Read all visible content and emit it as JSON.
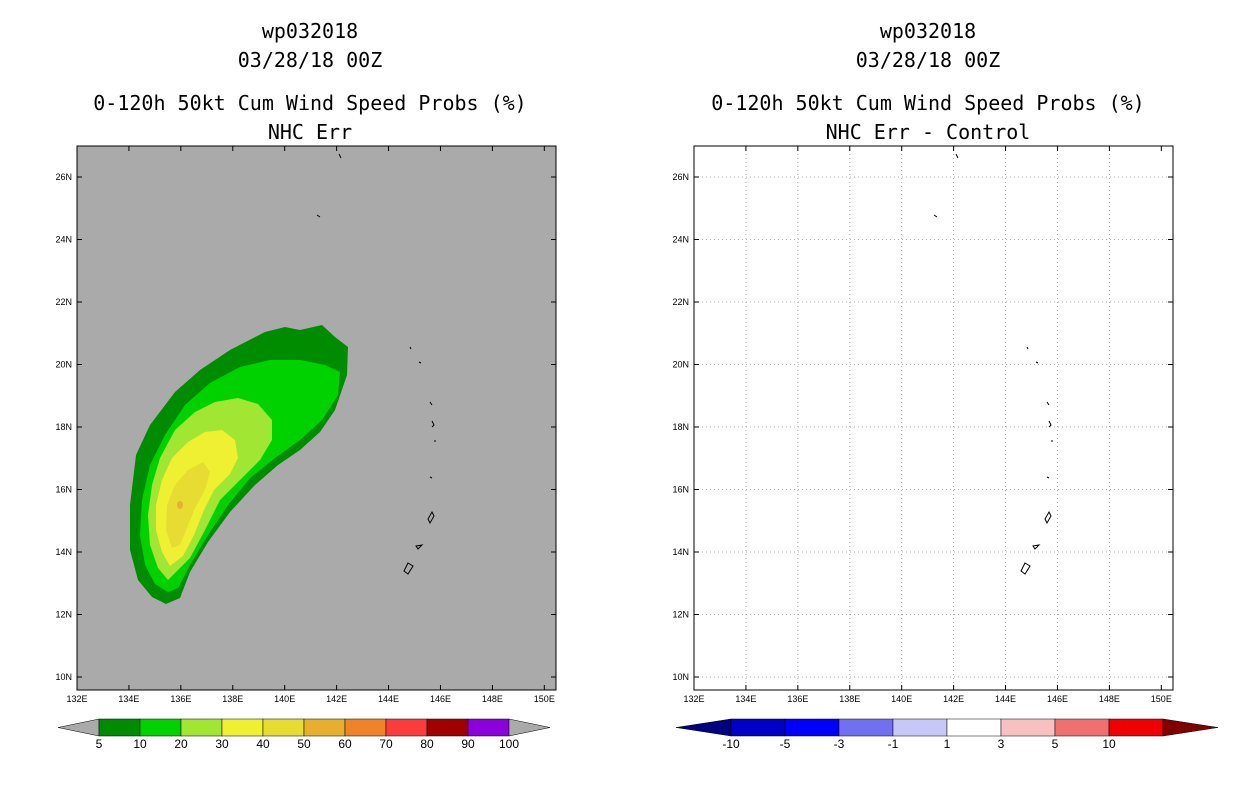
{
  "left_panel": {
    "storm_id": "wp032018",
    "datetime": "03/28/18 00Z",
    "title": "0-120h 50kt Cum Wind Speed Probs (%)",
    "subtitle": "NHC Err",
    "colors": {
      "background": "#aaaaaa",
      "c5": "#008c00",
      "c10": "#00d200",
      "c20": "#a0e632",
      "c30": "#f0f032",
      "c_center": "#e8b030"
    },
    "colorbar": {
      "labels": [
        "5",
        "10",
        "20",
        "30",
        "40",
        "50",
        "60",
        "70",
        "80",
        "90",
        "100"
      ],
      "colors": [
        "#008c00",
        "#00d200",
        "#a0e632",
        "#f0f032",
        "#e6dc32",
        "#e6af2d",
        "#f08228",
        "#fa3c3c",
        "#a00000",
        "#8c00dc"
      ],
      "under_color": "#aaaaaa",
      "over_color": "#aaaaaa"
    }
  },
  "right_panel": {
    "storm_id": "wp032018",
    "datetime": "03/28/18 00Z",
    "title": "0-120h 50kt Cum Wind Speed Probs (%)",
    "subtitle": "NHC Err - Control",
    "colorbar": {
      "labels": [
        "-10",
        "-5",
        "-3",
        "-1",
        "1",
        "3",
        "5",
        "10"
      ],
      "colors": [
        "#0000c8",
        "#0000ff",
        "#7070f0",
        "#c8c8f8",
        "#ffffff",
        "#f8c0c0",
        "#f07070",
        "#f00000"
      ],
      "under_color": "#000080",
      "over_color": "#800000"
    }
  },
  "axes": {
    "lon_labels": [
      "132E",
      "134E",
      "136E",
      "138E",
      "140E",
      "142E",
      "144E",
      "146E",
      "148E",
      "150E"
    ],
    "lat_labels": [
      "10N",
      "12N",
      "14N",
      "16N",
      "18N",
      "20N",
      "22N",
      "24N",
      "26N"
    ]
  }
}
